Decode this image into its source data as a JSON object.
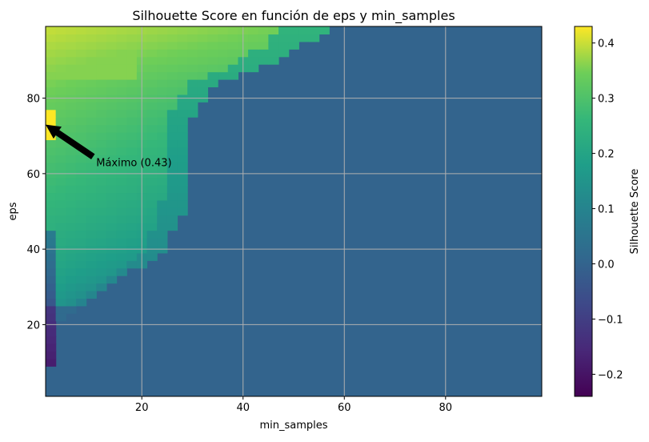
{
  "chart_data": {
    "type": "heatmap",
    "title": "Silhouette Score en función de eps y min_samples",
    "xlabel": "min_samples",
    "ylabel": "eps",
    "xlim": [
      1,
      99
    ],
    "ylim": [
      1,
      99
    ],
    "x_ticks": [
      20,
      40,
      60,
      80
    ],
    "y_ticks": [
      20,
      40,
      60,
      80
    ],
    "grid": true,
    "colormap": "viridis",
    "colorbar": {
      "label": "Silhouette Score",
      "range": [
        -0.24,
        0.43
      ],
      "ticks": [
        -0.2,
        -0.1,
        0.0,
        0.1,
        0.2,
        0.3,
        0.4
      ],
      "tick_labels": [
        "−0.2",
        "−0.1",
        "0.0",
        "0.1",
        "0.2",
        "0.3",
        "0.4"
      ]
    },
    "background_value": 0.0,
    "boundary_nonzero_region": [
      {
        "eps": 99,
        "min_samples_max": 57
      },
      {
        "eps": 95,
        "min_samples_max": 53
      },
      {
        "eps": 90,
        "min_samples_max": 47
      },
      {
        "eps": 85,
        "min_samples_max": 36
      },
      {
        "eps": 80,
        "min_samples_max": 32
      },
      {
        "eps": 75,
        "min_samples_max": 30
      },
      {
        "eps": 70,
        "min_samples_max": 29
      },
      {
        "eps": 60,
        "min_samples_max": 29
      },
      {
        "eps": 50,
        "min_samples_max": 28
      },
      {
        "eps": 45,
        "min_samples_max": 26
      },
      {
        "eps": 40,
        "min_samples_max": 24
      },
      {
        "eps": 35,
        "min_samples_max": 19
      },
      {
        "eps": 30,
        "min_samples_max": 12
      },
      {
        "eps": 25,
        "min_samples_max": 7
      },
      {
        "eps": 20,
        "min_samples_max": 3
      },
      {
        "eps": 10,
        "min_samples_max": 2
      },
      {
        "eps": 1,
        "min_samples_max": 1
      }
    ],
    "max_point": {
      "min_samples": 1,
      "eps": 73,
      "value": 0.43
    },
    "annotation": {
      "text": "Máximo (0.43)",
      "text_at": {
        "min_samples": 11,
        "eps": 63
      },
      "arrow_to": {
        "min_samples": 1,
        "eps": 73
      }
    }
  }
}
